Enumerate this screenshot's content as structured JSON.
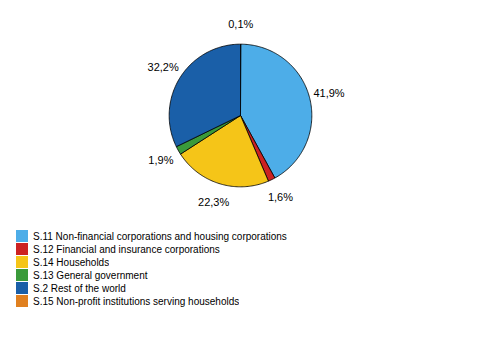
{
  "chart_data": {
    "type": "pie",
    "categories": [
      "S.15 Non-profit institutions serving households",
      "S.11 Non-financial corporations and housing corporations",
      "S.12 Financial and insurance corporations",
      "S.14 Households",
      "S.13 General government",
      "S.2 Rest of the world"
    ],
    "values": [
      0.1,
      41.9,
      1.6,
      22.3,
      1.9,
      32.2
    ],
    "value_labels": [
      "0,1%",
      "41,9%",
      "1,6%",
      "22,3%",
      "1,9%",
      "32,2%"
    ],
    "colors": [
      "#E08020",
      "#4DADE8",
      "#CC2222",
      "#F5C518",
      "#3A9A3A",
      "#1A5FA8"
    ],
    "legend_labels": [
      "S.11 Non-financial corporations and housing corporations",
      "S.12 Financial and insurance corporations",
      "S.14 Households",
      "S.13 General government",
      "S.2 Rest of the world",
      "S.15 Non-profit institutions serving households"
    ],
    "data_labels": true,
    "legend": "lower left"
  }
}
